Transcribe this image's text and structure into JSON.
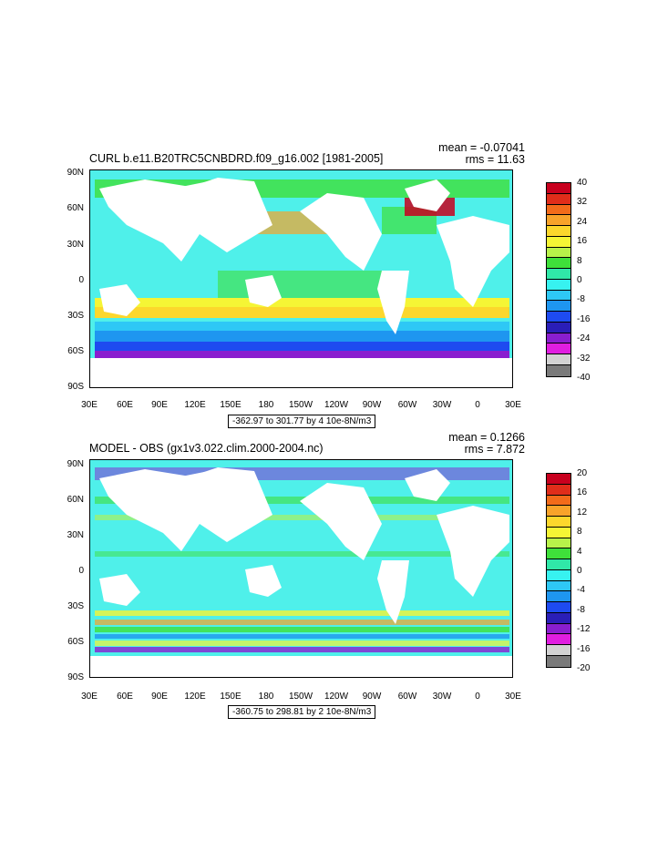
{
  "panels": [
    {
      "title": "CURL b.e11.B20TRC5CNBDRD.f09_g16.002 [1981-2005]",
      "mean": "mean = -0.07041",
      "rms": "rms = 11.63",
      "range_text": "-362.97 to 301.77 by 4 10e-8N/m3",
      "colorbar_labels": [
        "40",
        "32",
        "24",
        "16",
        "8",
        "0",
        "-8",
        "-16",
        "-24",
        "-32",
        "-40"
      ]
    },
    {
      "title": "MODEL - OBS (gx1v3.022.clim.2000-2004.nc)",
      "mean": "mean = 0.1266",
      "rms": "rms = 7.872",
      "range_text": "-360.75 to 298.81 by 2 10e-8N/m3",
      "colorbar_labels": [
        "20",
        "16",
        "12",
        "8",
        "4",
        "0",
        "-4",
        "-8",
        "-12",
        "-16",
        "-20"
      ]
    }
  ],
  "lat_labels": [
    "90N",
    "60N",
    "30N",
    "0",
    "30S",
    "60S",
    "90S"
  ],
  "lon_labels": [
    "30E",
    "60E",
    "90E",
    "120E",
    "150E",
    "180",
    "150W",
    "120W",
    "90W",
    "60W",
    "30W",
    "0",
    "30E"
  ],
  "colorbar_colors": [
    "#c8001e",
    "#e02d1a",
    "#f26b1a",
    "#f8a32a",
    "#fcd72c",
    "#f5f535",
    "#b8f24a",
    "#3fe03a",
    "#30e8a8",
    "#37f2f0",
    "#2ec8f5",
    "#1e96f0",
    "#1e4bf0",
    "#2a1eb8",
    "#8a1ecf",
    "#e01ee0",
    "#d2d2d2",
    "#7a7a7a"
  ],
  "colors": {
    "ocean_base": "#4ff0ea",
    "land": "#ffffff"
  }
}
